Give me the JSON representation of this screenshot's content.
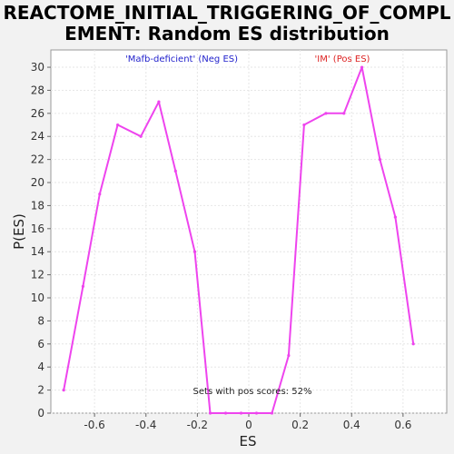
{
  "chart_data": {
    "type": "line",
    "title_line1": "REACTOME_INITIAL_TRIGGERING_OF_COMPL",
    "title_line2": "EMENT: Random ES distribution",
    "xlabel": "ES",
    "ylabel": "P(ES)",
    "xlim": [
      -0.77,
      0.77
    ],
    "ylim": [
      0,
      31.5
    ],
    "x_ticks": [
      -0.6,
      -0.4,
      -0.2,
      0.0,
      0.2,
      0.4,
      0.6
    ],
    "x_tick_labels": [
      "-0.6",
      "-0.4",
      "-0.2",
      "0",
      "0.2",
      "0.4",
      "0.6"
    ],
    "y_ticks": [
      0,
      2,
      4,
      6,
      8,
      10,
      12,
      14,
      16,
      18,
      20,
      22,
      24,
      26,
      28,
      30
    ],
    "y_tick_labels": [
      "0",
      "2",
      "4",
      "6",
      "8",
      "10",
      "12",
      "14",
      "16",
      "18",
      "20",
      "22",
      "24",
      "26",
      "28",
      "30"
    ],
    "grid": true,
    "series": [
      {
        "color": "#ee44ee",
        "x": [
          -0.72,
          -0.645,
          -0.58,
          -0.51,
          -0.42,
          -0.35,
          -0.285,
          -0.21,
          -0.15,
          -0.09,
          -0.03,
          0.03,
          0.09,
          0.155,
          0.215,
          0.3,
          0.37,
          0.44,
          0.51,
          0.57,
          0.64
        ],
        "y": [
          2,
          11,
          19,
          25,
          24,
          27,
          21,
          14,
          0,
          0,
          0,
          0,
          0,
          5,
          25,
          26,
          26,
          30,
          22,
          17,
          6
        ]
      }
    ],
    "annotations": {
      "neg_label": "'Mafb-deficient' (Neg ES)",
      "neg_color": "#2222cc",
      "pos_label": "'IM' (Pos ES)",
      "pos_color": "#dd2222",
      "footer": "Sets with pos scores: 52%"
    }
  }
}
